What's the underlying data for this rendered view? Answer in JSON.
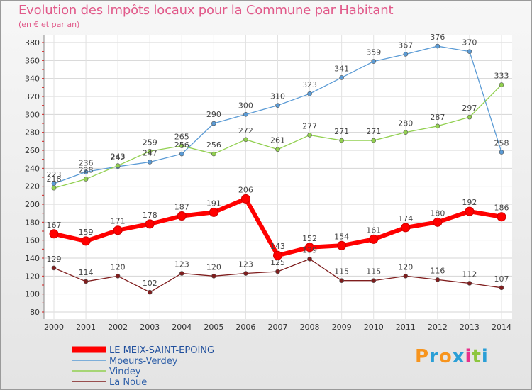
{
  "chart_data": {
    "type": "line",
    "title": "Evolution des Impôts locaux pour la Commune par Habitant",
    "subtitle": "(en € et par an)",
    "xlabel": "",
    "ylabel": "",
    "x": [
      "2000",
      "2001",
      "2002",
      "2003",
      "2004",
      "2005",
      "2006",
      "2007",
      "2008",
      "2009",
      "2010",
      "2011",
      "2012",
      "2013",
      "2014"
    ],
    "ylim": [
      80,
      380
    ],
    "yticks": [
      80,
      100,
      120,
      140,
      160,
      180,
      200,
      220,
      240,
      260,
      280,
      300,
      320,
      340,
      360,
      380
    ],
    "grid": true,
    "legend_position": "bottom-left",
    "series": [
      {
        "name": "LE MEIX-SAINT-EPOING",
        "color": "#ff0000",
        "values": [
          167,
          159,
          171,
          178,
          187,
          191,
          206,
          143,
          152,
          154,
          161,
          174,
          180,
          192,
          186
        ]
      },
      {
        "name": "Moeurs-Verdey",
        "color": "#5b9bd5",
        "values": [
          223,
          236,
          242,
          247,
          256,
          290,
          300,
          310,
          323,
          341,
          359,
          367,
          376,
          370,
          258
        ]
      },
      {
        "name": "Vindey",
        "color": "#92d050",
        "values": [
          218,
          228,
          243,
          259,
          265,
          256,
          272,
          261,
          277,
          271,
          271,
          280,
          287,
          297,
          333
        ]
      },
      {
        "name": "La Noue",
        "color": "#7f1d1d",
        "values": [
          129,
          114,
          120,
          102,
          123,
          120,
          123,
          125,
          139,
          115,
          115,
          120,
          116,
          112,
          107
        ]
      }
    ]
  },
  "logo": {
    "text": "Proxiti",
    "letters": [
      "P",
      "r",
      "o",
      "x",
      "i",
      "t",
      "i"
    ],
    "colors": [
      "#f7941d",
      "#2a9fd6",
      "#f7941d",
      "#2a9fd6",
      "#e8308c",
      "#8dc63f",
      "#2a9fd6"
    ]
  }
}
